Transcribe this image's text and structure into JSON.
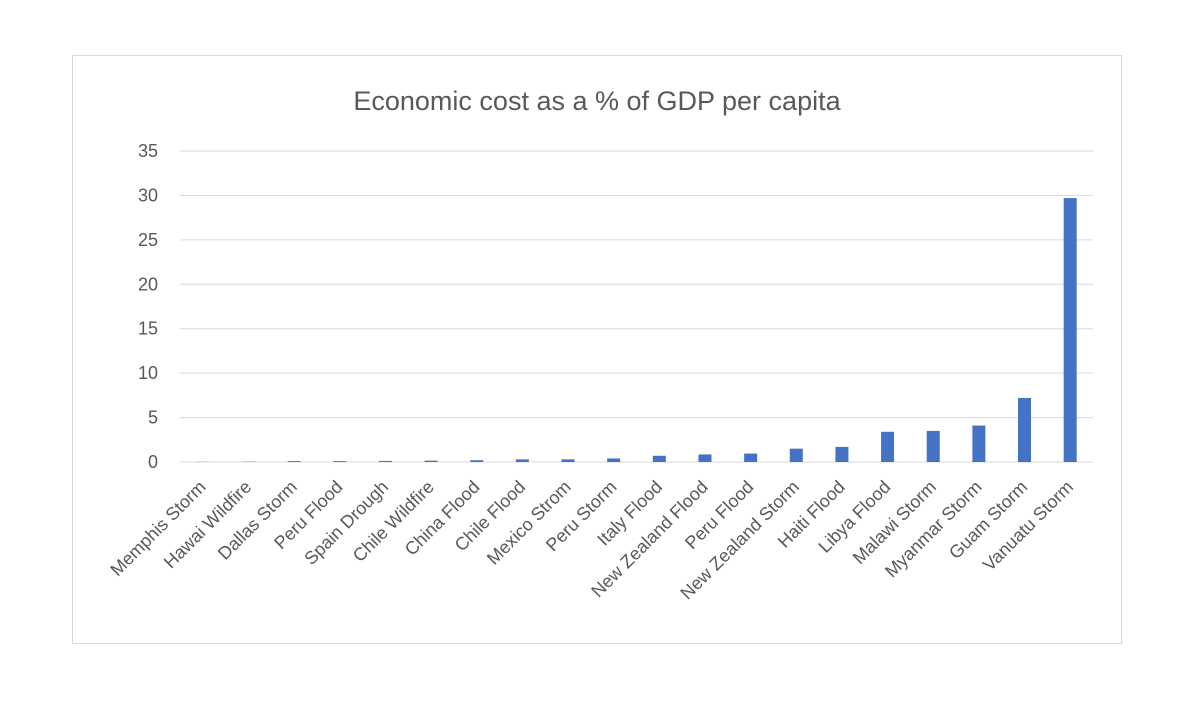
{
  "chart_data": {
    "type": "bar",
    "title": "Economic cost as a % of GDP per capita",
    "xlabel": "",
    "ylabel": "",
    "ylim": [
      0,
      35
    ],
    "yticks": [
      0,
      5,
      10,
      15,
      20,
      25,
      30,
      35
    ],
    "grid": true,
    "legend": "none",
    "bar_color": "#4472c4",
    "categories": [
      "Memphis Storm",
      "Hawai Wildfire",
      "Dallas  Storm",
      "Peru Flood",
      "Spain Drough",
      "Chile Wildfire",
      "China Flood",
      "Chile Flood",
      "Mexico Strom",
      "Peru Storm",
      "Italy Flood",
      "New Zealand Flood",
      "Peru Flood",
      "New Zealand Storm",
      "Haiti Flood",
      "Libya Flood",
      "Malawi Storm",
      "Myanmar Storm",
      "Guam Storm",
      "Vanuatu Storm"
    ],
    "values": [
      0.02,
      0.03,
      0.1,
      0.1,
      0.12,
      0.15,
      0.2,
      0.3,
      0.3,
      0.4,
      0.7,
      0.85,
      0.95,
      1.5,
      1.7,
      3.4,
      3.5,
      4.1,
      7.2,
      29.7
    ]
  }
}
